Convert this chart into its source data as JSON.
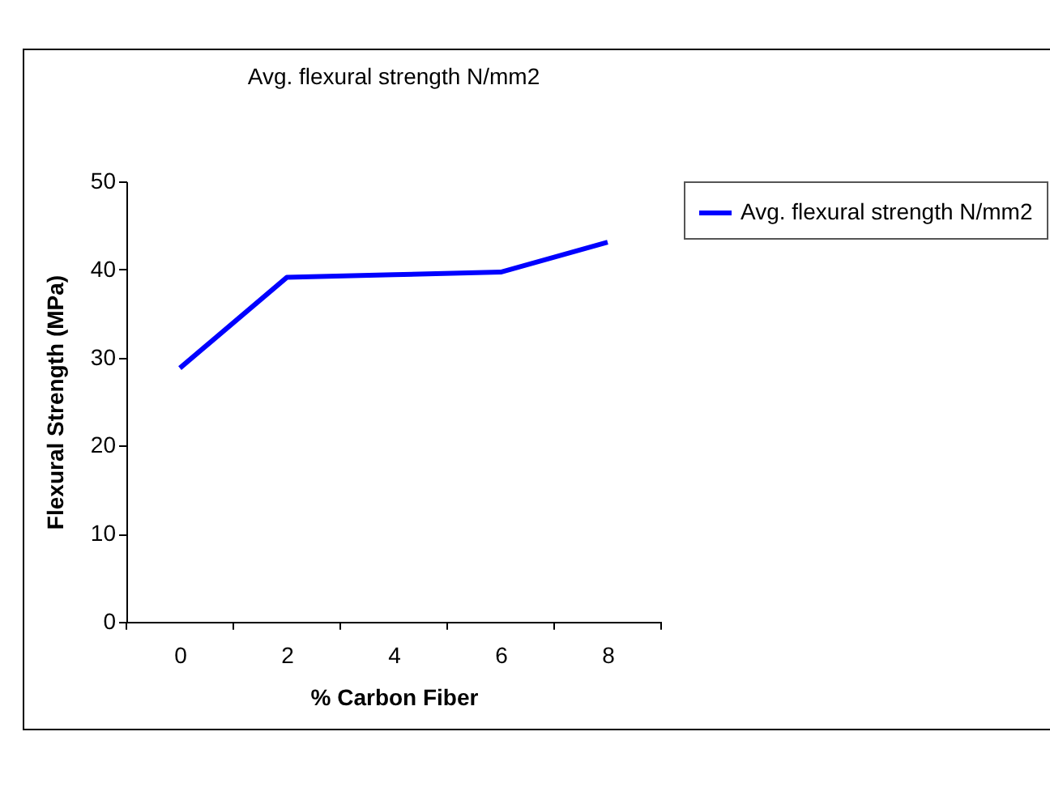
{
  "chart_data": {
    "type": "line",
    "title": "Avg. flexural strength N/mm2",
    "xlabel": "% Carbon Fiber",
    "ylabel": "Flexural Strength (MPa)",
    "categories": [
      "0",
      "2",
      "4",
      "6",
      "8"
    ],
    "series": [
      {
        "name": "Avg. flexural strength N/mm2",
        "color": "#0000ff",
        "values": [
          28.8,
          39.1,
          39.4,
          39.7,
          43.1
        ]
      }
    ],
    "ylim": [
      0,
      50
    ],
    "yticks": [
      0,
      10,
      20,
      30,
      40,
      50
    ],
    "grid": false,
    "legend": "right",
    "marker": "none",
    "line_style": "solid"
  }
}
